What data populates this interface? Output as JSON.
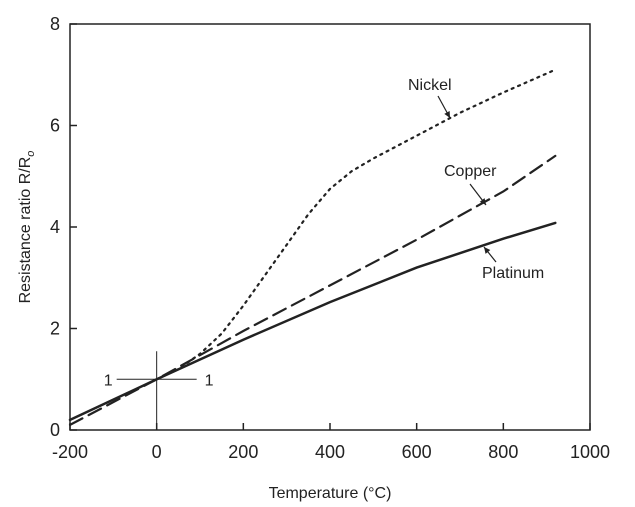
{
  "chart_data": {
    "type": "line",
    "title": "",
    "xlabel": "Temperature (°C)",
    "ylabel": "Resistance ratio R/R",
    "ylabel_subscript": "o",
    "xlim": [
      -200,
      1000
    ],
    "ylim": [
      0,
      8
    ],
    "xticks": [
      -200,
      0,
      200,
      400,
      600,
      800,
      1000
    ],
    "yticks": [
      0,
      2,
      4,
      6,
      8
    ],
    "grid": false,
    "legend": "none",
    "series": [
      {
        "name": "Nickel",
        "style": "dotted",
        "color": "#222222",
        "points": [
          [
            0,
            1.0
          ],
          [
            50,
            1.2
          ],
          [
            100,
            1.5
          ],
          [
            150,
            1.9
          ],
          [
            200,
            2.45
          ],
          [
            250,
            3.05
          ],
          [
            300,
            3.65
          ],
          [
            350,
            4.25
          ],
          [
            400,
            4.75
          ],
          [
            450,
            5.1
          ],
          [
            500,
            5.35
          ],
          [
            600,
            5.8
          ],
          [
            700,
            6.25
          ],
          [
            800,
            6.65
          ],
          [
            920,
            7.1
          ]
        ]
      },
      {
        "name": "Copper",
        "style": "dashed",
        "color": "#222222",
        "points": [
          [
            -200,
            0.1
          ],
          [
            0,
            1.0
          ],
          [
            200,
            1.95
          ],
          [
            400,
            2.85
          ],
          [
            600,
            3.75
          ],
          [
            800,
            4.7
          ],
          [
            920,
            5.4
          ]
        ]
      },
      {
        "name": "Platinum",
        "style": "solid",
        "color": "#222222",
        "points": [
          [
            -200,
            0.2
          ],
          [
            0,
            1.0
          ],
          [
            200,
            1.78
          ],
          [
            400,
            2.52
          ],
          [
            600,
            3.2
          ],
          [
            800,
            3.77
          ],
          [
            920,
            4.08
          ]
        ]
      }
    ],
    "reference": {
      "label_left": "1",
      "label_right": "1",
      "x": 0,
      "y": 1
    }
  }
}
